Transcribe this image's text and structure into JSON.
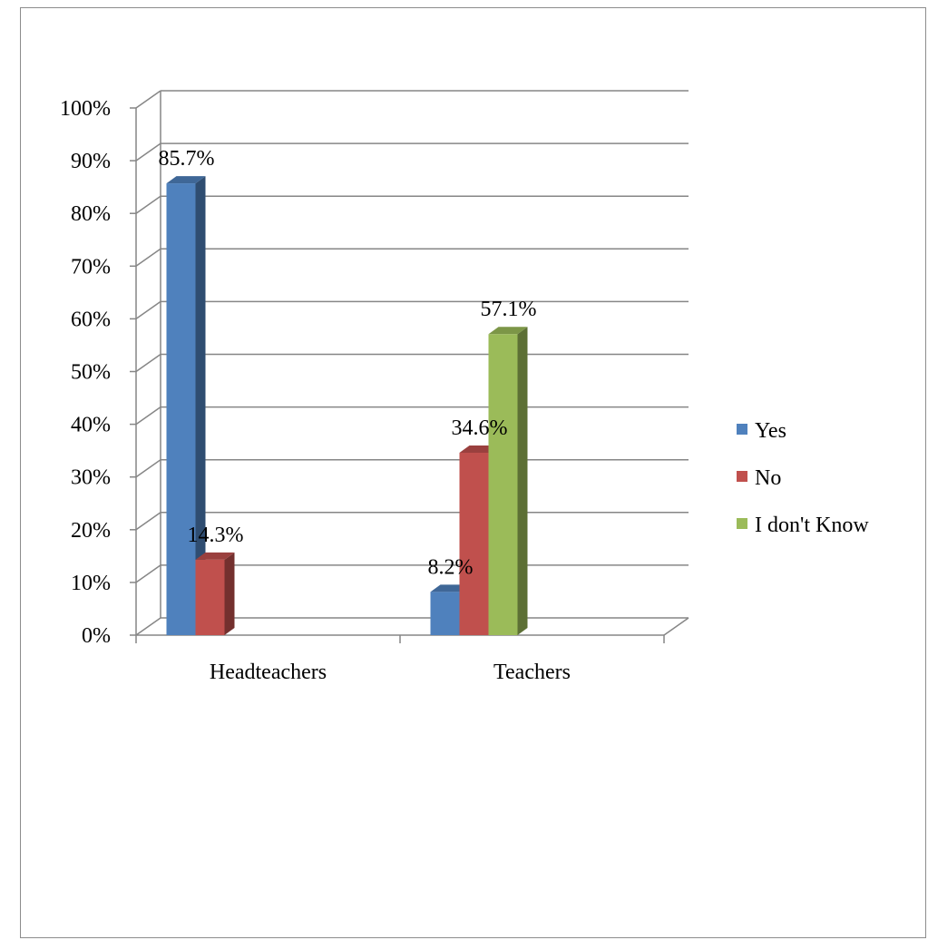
{
  "chart_data": {
    "type": "bar",
    "title": "",
    "xlabel": "",
    "ylabel": "",
    "categories": [
      "Headteachers",
      "Teachers"
    ],
    "series": [
      {
        "name": "Yes",
        "values": [
          85.7,
          8.2
        ],
        "color": "#4f81bd"
      },
      {
        "name": "No",
        "values": [
          14.3,
          34.6
        ],
        "color": "#c0504d"
      },
      {
        "name": "I don't Know",
        "values": [
          null,
          57.1
        ],
        "color": "#9bbb59"
      }
    ],
    "data_labels": [
      [
        "85.7%",
        "8.2%"
      ],
      [
        "14.3%",
        "34.6%"
      ],
      [
        "",
        "57.1%"
      ]
    ],
    "y_ticks": [
      "0%",
      "10%",
      "20%",
      "30%",
      "40%",
      "50%",
      "60%",
      "70%",
      "80%",
      "90%",
      "100%"
    ],
    "ylim": [
      0,
      100
    ],
    "grid": true,
    "legend_position": "right",
    "style": "3d-clustered-column"
  }
}
